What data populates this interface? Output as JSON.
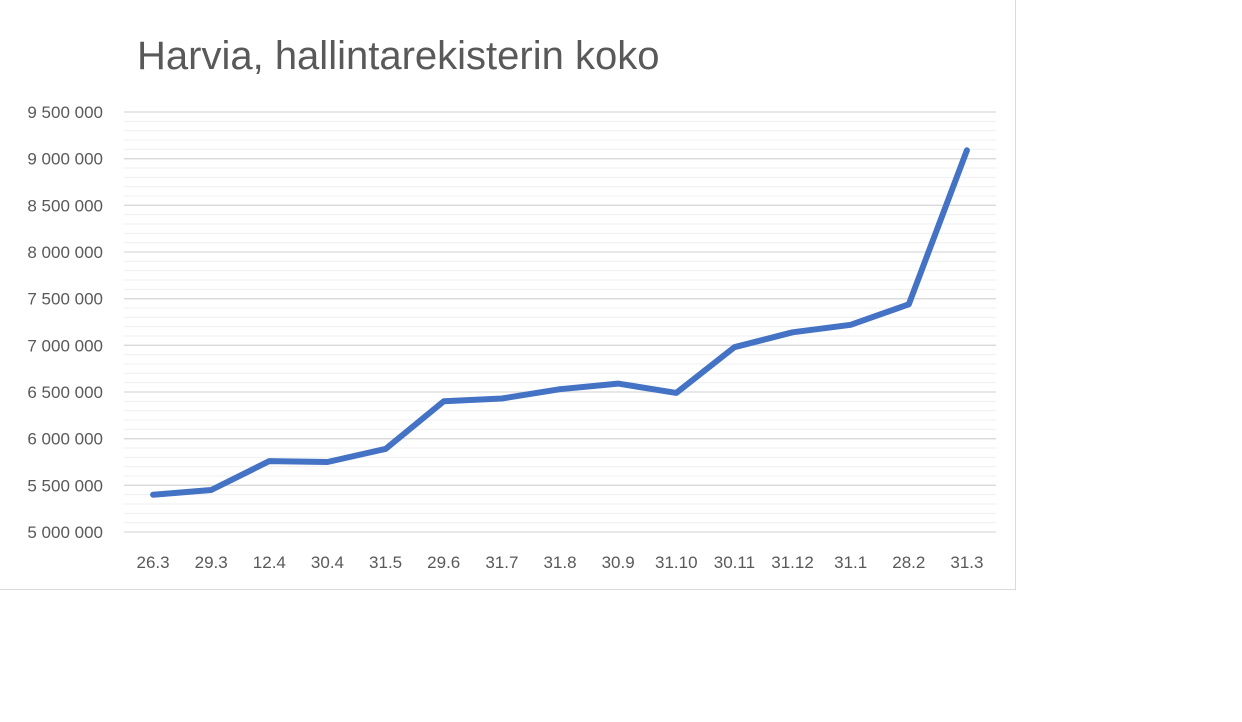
{
  "chart_data": {
    "type": "line",
    "title": "Harvia, hallintarekisterin koko",
    "xlabel": "",
    "ylabel": "",
    "categories": [
      "26.3",
      "29.3",
      "12.4",
      "30.4",
      "31.5",
      "29.6",
      "31.7",
      "31.8",
      "30.9",
      "31.10",
      "30.11",
      "31.12",
      "31.1",
      "28.2",
      "31.3"
    ],
    "series": [
      {
        "values": [
          5400000,
          5450000,
          5760000,
          5750000,
          5890000,
          6400000,
          6430000,
          6530000,
          6590000,
          6490000,
          6980000,
          7140000,
          7220000,
          7440000,
          9090000
        ]
      }
    ],
    "y_ticks": [
      "5 000 000",
      "5 500 000",
      "6 000 000",
      "6 500 000",
      "7 000 000",
      "7 500 000",
      "8 000 000",
      "8 500 000",
      "9 000 000",
      "9 500 000"
    ],
    "ylim": [
      5000000,
      9500000
    ],
    "y_major_step": 500000,
    "y_minor_step": 100000,
    "grid": true,
    "legend": "none",
    "line_color": "#4472c4",
    "major_grid_color": "#d9d9d9",
    "minor_grid_color": "#efefef",
    "text_color": "#595959"
  }
}
